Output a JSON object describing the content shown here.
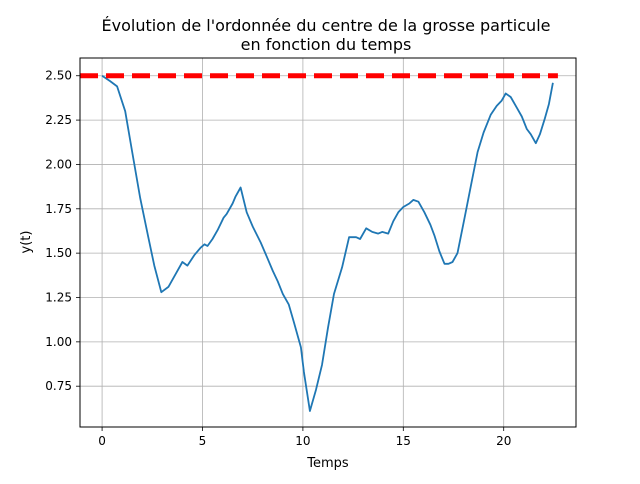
{
  "colors": {
    "series": "#1f77b4",
    "reference": "#ff0000",
    "grid": "#b0b0b0",
    "axes": "#000000",
    "background": "#ffffff"
  },
  "chart_data": {
    "type": "line",
    "title_line1": "Évolution de l'ordonnée du centre de la grosse particule",
    "title_line2": "en fonction du temps",
    "xlabel": "Temps",
    "ylabel": "y(t)",
    "xlim": [
      -1.1,
      23.6
    ],
    "ylim": [
      0.52,
      2.6
    ],
    "grid": true,
    "x_ticks": [
      0,
      5,
      10,
      15,
      20
    ],
    "x_tick_labels": [
      "0",
      "5",
      "10",
      "15",
      "20"
    ],
    "y_ticks": [
      0.75,
      1.0,
      1.25,
      1.5,
      1.75,
      2.0,
      2.25,
      2.5
    ],
    "y_tick_labels": [
      "0.75",
      "1.00",
      "1.25",
      "1.50",
      "1.75",
      "2.00",
      "2.25",
      "2.50"
    ],
    "series": [
      {
        "style": "solid",
        "x": [
          0,
          0.4,
          0.75,
          1.15,
          1.5,
          1.9,
          2.3,
          2.6,
          2.95,
          3.3,
          3.7,
          4.0,
          4.25,
          4.6,
          4.9,
          5.1,
          5.25,
          5.5,
          5.75,
          6.05,
          6.2,
          6.5,
          6.65,
          6.9,
          7.2,
          7.5,
          7.9,
          8.2,
          8.5,
          8.75,
          9.0,
          9.3,
          9.55,
          9.9,
          10.05,
          10.35,
          10.65,
          10.95,
          11.25,
          11.55,
          11.95,
          12.3,
          12.65,
          12.85,
          13.15,
          13.45,
          13.75,
          13.95,
          14.25,
          14.5,
          14.75,
          15.0,
          15.3,
          15.5,
          15.75,
          16.05,
          16.35,
          16.55,
          16.8,
          17.05,
          17.25,
          17.45,
          17.7,
          18.05,
          18.4,
          18.7,
          19.0,
          19.35,
          19.65,
          19.9,
          20.1,
          20.35,
          20.65,
          20.9,
          21.15,
          21.35,
          21.6,
          21.8,
          22.05,
          22.25,
          22.45
        ],
        "y": [
          2.5,
          2.47,
          2.44,
          2.3,
          2.07,
          1.81,
          1.59,
          1.43,
          1.28,
          1.31,
          1.39,
          1.45,
          1.43,
          1.49,
          1.53,
          1.55,
          1.54,
          1.58,
          1.63,
          1.7,
          1.72,
          1.78,
          1.82,
          1.87,
          1.73,
          1.65,
          1.56,
          1.48,
          1.4,
          1.34,
          1.27,
          1.21,
          1.11,
          0.97,
          0.83,
          0.61,
          0.73,
          0.87,
          1.08,
          1.27,
          1.42,
          1.59,
          1.59,
          1.58,
          1.64,
          1.62,
          1.61,
          1.62,
          1.61,
          1.68,
          1.73,
          1.76,
          1.78,
          1.8,
          1.79,
          1.73,
          1.66,
          1.6,
          1.51,
          1.44,
          1.44,
          1.45,
          1.5,
          1.7,
          1.9,
          2.07,
          2.18,
          2.28,
          2.33,
          2.36,
          2.4,
          2.38,
          2.32,
          2.27,
          2.2,
          2.17,
          2.12,
          2.17,
          2.26,
          2.34,
          2.46
        ]
      },
      {
        "style": "dashed",
        "x": [
          -1.1,
          22.7
        ],
        "y": [
          2.5,
          2.5
        ]
      }
    ]
  }
}
